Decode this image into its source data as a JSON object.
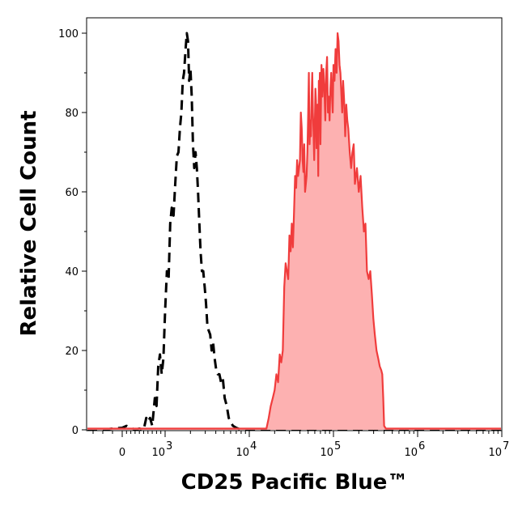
{
  "chart_data": {
    "type": "area",
    "title": "",
    "xlabel": "CD25 Pacific Blue™",
    "ylabel": "Relative Cell Count",
    "xscale": "biexponential (linear near 0, log above)",
    "xlim": [
      -400,
      12000000
    ],
    "ylim": [
      0,
      103
    ],
    "grid": false,
    "legend": "none",
    "x_ticks": [
      {
        "value": 0,
        "base": "0",
        "exp": ""
      },
      {
        "value": 1000,
        "base": "10",
        "exp": "3"
      },
      {
        "value": 10000,
        "base": "10",
        "exp": "4"
      },
      {
        "value": 100000,
        "base": "10",
        "exp": "5"
      },
      {
        "value": 1000000,
        "base": "10",
        "exp": "6"
      },
      {
        "value": 10000000,
        "base": "10",
        "exp": "7"
      }
    ],
    "y_ticks": [
      {
        "value": 0,
        "label": "0"
      },
      {
        "value": 20,
        "label": "20"
      },
      {
        "value": 40,
        "label": "40"
      },
      {
        "value": 60,
        "label": "60"
      },
      {
        "value": 80,
        "label": "80"
      },
      {
        "value": 100,
        "label": "100"
      }
    ],
    "series": [
      {
        "style": "dashed-black-outline",
        "color": "#000000",
        "points": [
          [
            -400,
            0
          ],
          [
            -200,
            0
          ],
          [
            -100,
            0.3
          ],
          [
            0,
            0.5
          ],
          [
            100,
            1
          ],
          [
            200,
            0.5
          ],
          [
            300,
            0
          ],
          [
            400,
            0.3
          ],
          [
            500,
            0
          ],
          [
            560,
            3
          ],
          [
            600,
            2
          ],
          [
            650,
            3
          ],
          [
            700,
            1
          ],
          [
            760,
            8
          ],
          [
            800,
            6
          ],
          [
            840,
            16
          ],
          [
            880,
            19
          ],
          [
            920,
            14
          ],
          [
            960,
            18
          ],
          [
            1000,
            30
          ],
          [
            1050,
            40
          ],
          [
            1100,
            38
          ],
          [
            1150,
            52
          ],
          [
            1200,
            56
          ],
          [
            1260,
            54
          ],
          [
            1320,
            62
          ],
          [
            1380,
            69
          ],
          [
            1440,
            70
          ],
          [
            1500,
            76
          ],
          [
            1560,
            80
          ],
          [
            1620,
            88
          ],
          [
            1680,
            90
          ],
          [
            1750,
            96
          ],
          [
            1810,
            100
          ],
          [
            1870,
            98
          ],
          [
            1930,
            88
          ],
          [
            2000,
            91
          ],
          [
            2070,
            84
          ],
          [
            2140,
            72
          ],
          [
            2220,
            66
          ],
          [
            2300,
            70
          ],
          [
            2380,
            66
          ],
          [
            2460,
            60
          ],
          [
            2550,
            52
          ],
          [
            2640,
            45
          ],
          [
            2740,
            40
          ],
          [
            2840,
            40
          ],
          [
            2950,
            36
          ],
          [
            3060,
            32
          ],
          [
            3180,
            26
          ],
          [
            3300,
            25
          ],
          [
            3430,
            24
          ],
          [
            3570,
            20
          ],
          [
            3720,
            22
          ],
          [
            3880,
            18
          ],
          [
            4050,
            15
          ],
          [
            4230,
            14
          ],
          [
            4420,
            14
          ],
          [
            4620,
            12
          ],
          [
            4850,
            13
          ],
          [
            5100,
            8
          ],
          [
            5400,
            6
          ],
          [
            5700,
            3
          ],
          [
            6000,
            2
          ],
          [
            6400,
            1
          ],
          [
            7000,
            0.5
          ],
          [
            8000,
            0
          ],
          [
            12000000,
            0
          ]
        ]
      },
      {
        "style": "red-filled",
        "color": "#f03c3c",
        "fill": "#fdb1b1",
        "points": [
          [
            -400,
            0.3
          ],
          [
            -200,
            0.3
          ],
          [
            0,
            0.3
          ],
          [
            1000,
            0.3
          ],
          [
            5000,
            0.3
          ],
          [
            14000,
            0.3
          ],
          [
            16000,
            0.3
          ],
          [
            17000,
            3
          ],
          [
            18000,
            6
          ],
          [
            19000,
            8
          ],
          [
            20000,
            10
          ],
          [
            21000,
            14
          ],
          [
            22000,
            12
          ],
          [
            23000,
            19
          ],
          [
            24000,
            17
          ],
          [
            25000,
            20
          ],
          [
            26000,
            36
          ],
          [
            27000,
            42
          ],
          [
            28000,
            40
          ],
          [
            29000,
            38
          ],
          [
            30000,
            49
          ],
          [
            31000,
            45
          ],
          [
            32000,
            52
          ],
          [
            33000,
            46
          ],
          [
            34000,
            55
          ],
          [
            35000,
            64
          ],
          [
            36000,
            61
          ],
          [
            37000,
            68
          ],
          [
            38000,
            64
          ],
          [
            39000,
            66
          ],
          [
            40000,
            68
          ],
          [
            41000,
            80
          ],
          [
            42000,
            76
          ],
          [
            43000,
            68
          ],
          [
            44000,
            65
          ],
          [
            45000,
            72
          ],
          [
            46000,
            60
          ],
          [
            47000,
            62
          ],
          [
            48000,
            64
          ],
          [
            49000,
            70
          ],
          [
            50000,
            79
          ],
          [
            51000,
            90
          ],
          [
            52000,
            72
          ],
          [
            53000,
            78
          ],
          [
            54000,
            74
          ],
          [
            55000,
            84
          ],
          [
            56000,
            90
          ],
          [
            57000,
            80
          ],
          [
            58000,
            75
          ],
          [
            59000,
            68
          ],
          [
            60000,
            76
          ],
          [
            61000,
            86
          ],
          [
            62000,
            83
          ],
          [
            63000,
            71
          ],
          [
            64000,
            76
          ],
          [
            65000,
            82
          ],
          [
            66000,
            64
          ],
          [
            67000,
            88
          ],
          [
            68000,
            84
          ],
          [
            69000,
            90
          ],
          [
            70000,
            72
          ],
          [
            72000,
            92
          ],
          [
            74000,
            84
          ],
          [
            76000,
            91
          ],
          [
            78000,
            86
          ],
          [
            80000,
            78
          ],
          [
            82000,
            90
          ],
          [
            84000,
            94
          ],
          [
            86000,
            80
          ],
          [
            88000,
            84
          ],
          [
            90000,
            78
          ],
          [
            92000,
            86
          ],
          [
            94000,
            90
          ],
          [
            96000,
            84
          ],
          [
            98000,
            80
          ],
          [
            100000,
            92
          ],
          [
            103000,
            88
          ],
          [
            106000,
            96
          ],
          [
            109000,
            90
          ],
          [
            112000,
            100
          ],
          [
            115000,
            98
          ],
          [
            118000,
            92
          ],
          [
            121000,
            90
          ],
          [
            124000,
            85
          ],
          [
            127000,
            80
          ],
          [
            130000,
            88
          ],
          [
            134000,
            83
          ],
          [
            138000,
            74
          ],
          [
            142000,
            82
          ],
          [
            146000,
            78
          ],
          [
            150000,
            76
          ],
          [
            156000,
            70
          ],
          [
            162000,
            66
          ],
          [
            168000,
            70
          ],
          [
            174000,
            72
          ],
          [
            180000,
            62
          ],
          [
            190000,
            66
          ],
          [
            200000,
            60
          ],
          [
            210000,
            64
          ],
          [
            220000,
            56
          ],
          [
            230000,
            50
          ],
          [
            240000,
            52
          ],
          [
            250000,
            40
          ],
          [
            262000,
            38
          ],
          [
            274000,
            40
          ],
          [
            286000,
            34
          ],
          [
            298000,
            28
          ],
          [
            310000,
            24
          ],
          [
            325000,
            20
          ],
          [
            340000,
            18
          ],
          [
            355000,
            16
          ],
          [
            370000,
            15
          ],
          [
            380000,
            14
          ],
          [
            390000,
            8
          ],
          [
            400000,
            1
          ],
          [
            420000,
            0.3
          ],
          [
            1000000,
            0.3
          ],
          [
            12000000,
            0.3
          ]
        ]
      }
    ]
  }
}
